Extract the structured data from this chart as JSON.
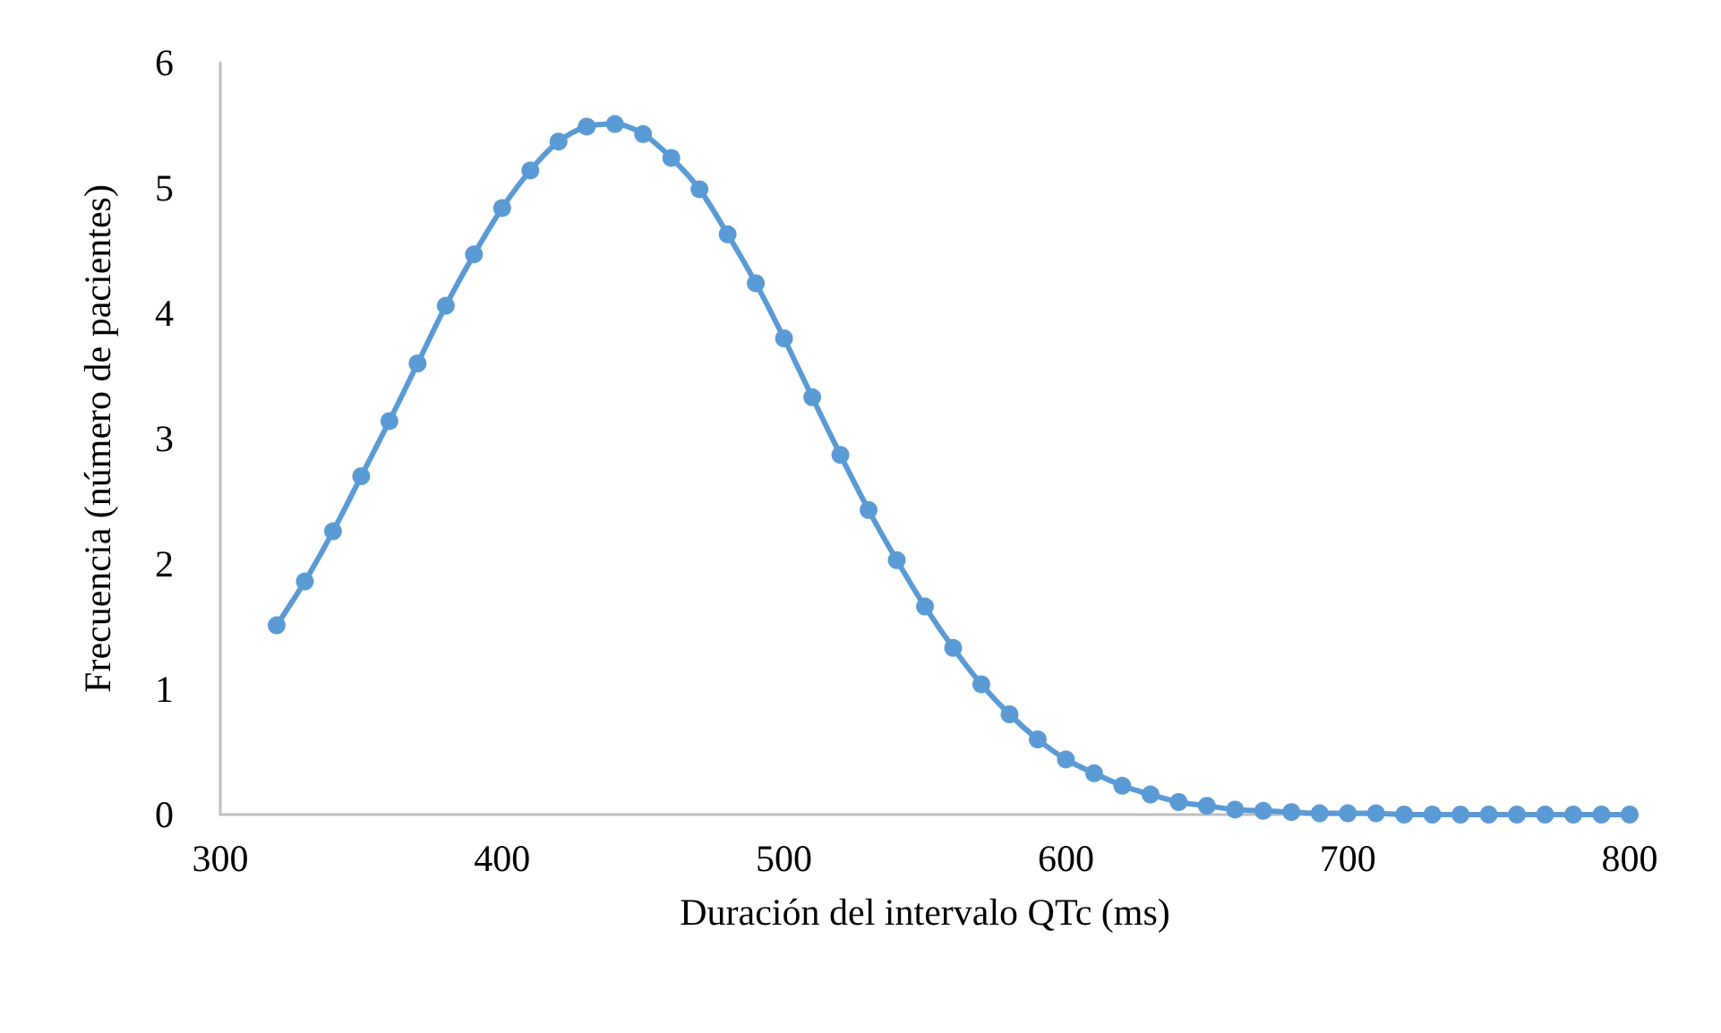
{
  "chart_data": {
    "type": "line",
    "xlabel": "Duración del intervalo QTc (ms)",
    "ylabel": "Frecuencia (número de pacientes)",
    "x": [
      320,
      330,
      340,
      350,
      360,
      370,
      380,
      390,
      400,
      410,
      420,
      430,
      440,
      450,
      460,
      470,
      480,
      490,
      500,
      510,
      520,
      530,
      540,
      550,
      560,
      570,
      580,
      590,
      600,
      610,
      620,
      630,
      640,
      650,
      660,
      670,
      680,
      690,
      700,
      710,
      720,
      730,
      740,
      750,
      760,
      770,
      780,
      790,
      800
    ],
    "series": [
      {
        "color": "#5b9bd5",
        "values": [
          1.51,
          1.86,
          2.26,
          2.7,
          3.14,
          3.6,
          4.06,
          4.47,
          4.84,
          5.14,
          5.37,
          5.49,
          5.51,
          5.43,
          5.24,
          4.99,
          4.63,
          4.24,
          3.8,
          3.33,
          2.87,
          2.43,
          2.03,
          1.66,
          1.33,
          1.04,
          0.8,
          0.6,
          0.44,
          0.33,
          0.23,
          0.16,
          0.1,
          0.07,
          0.04,
          0.03,
          0.02,
          0.01,
          0.01,
          0.01,
          0,
          0,
          0,
          0,
          0,
          0,
          0,
          0,
          0
        ]
      }
    ],
    "xlim": [
      300,
      800
    ],
    "xticks": [
      300,
      400,
      500,
      600,
      700,
      800
    ],
    "ylim": [
      0,
      6
    ],
    "yticks": [
      0,
      1,
      2,
      3,
      4,
      5,
      6
    ],
    "marker": "circle",
    "line_style": "solid"
  }
}
